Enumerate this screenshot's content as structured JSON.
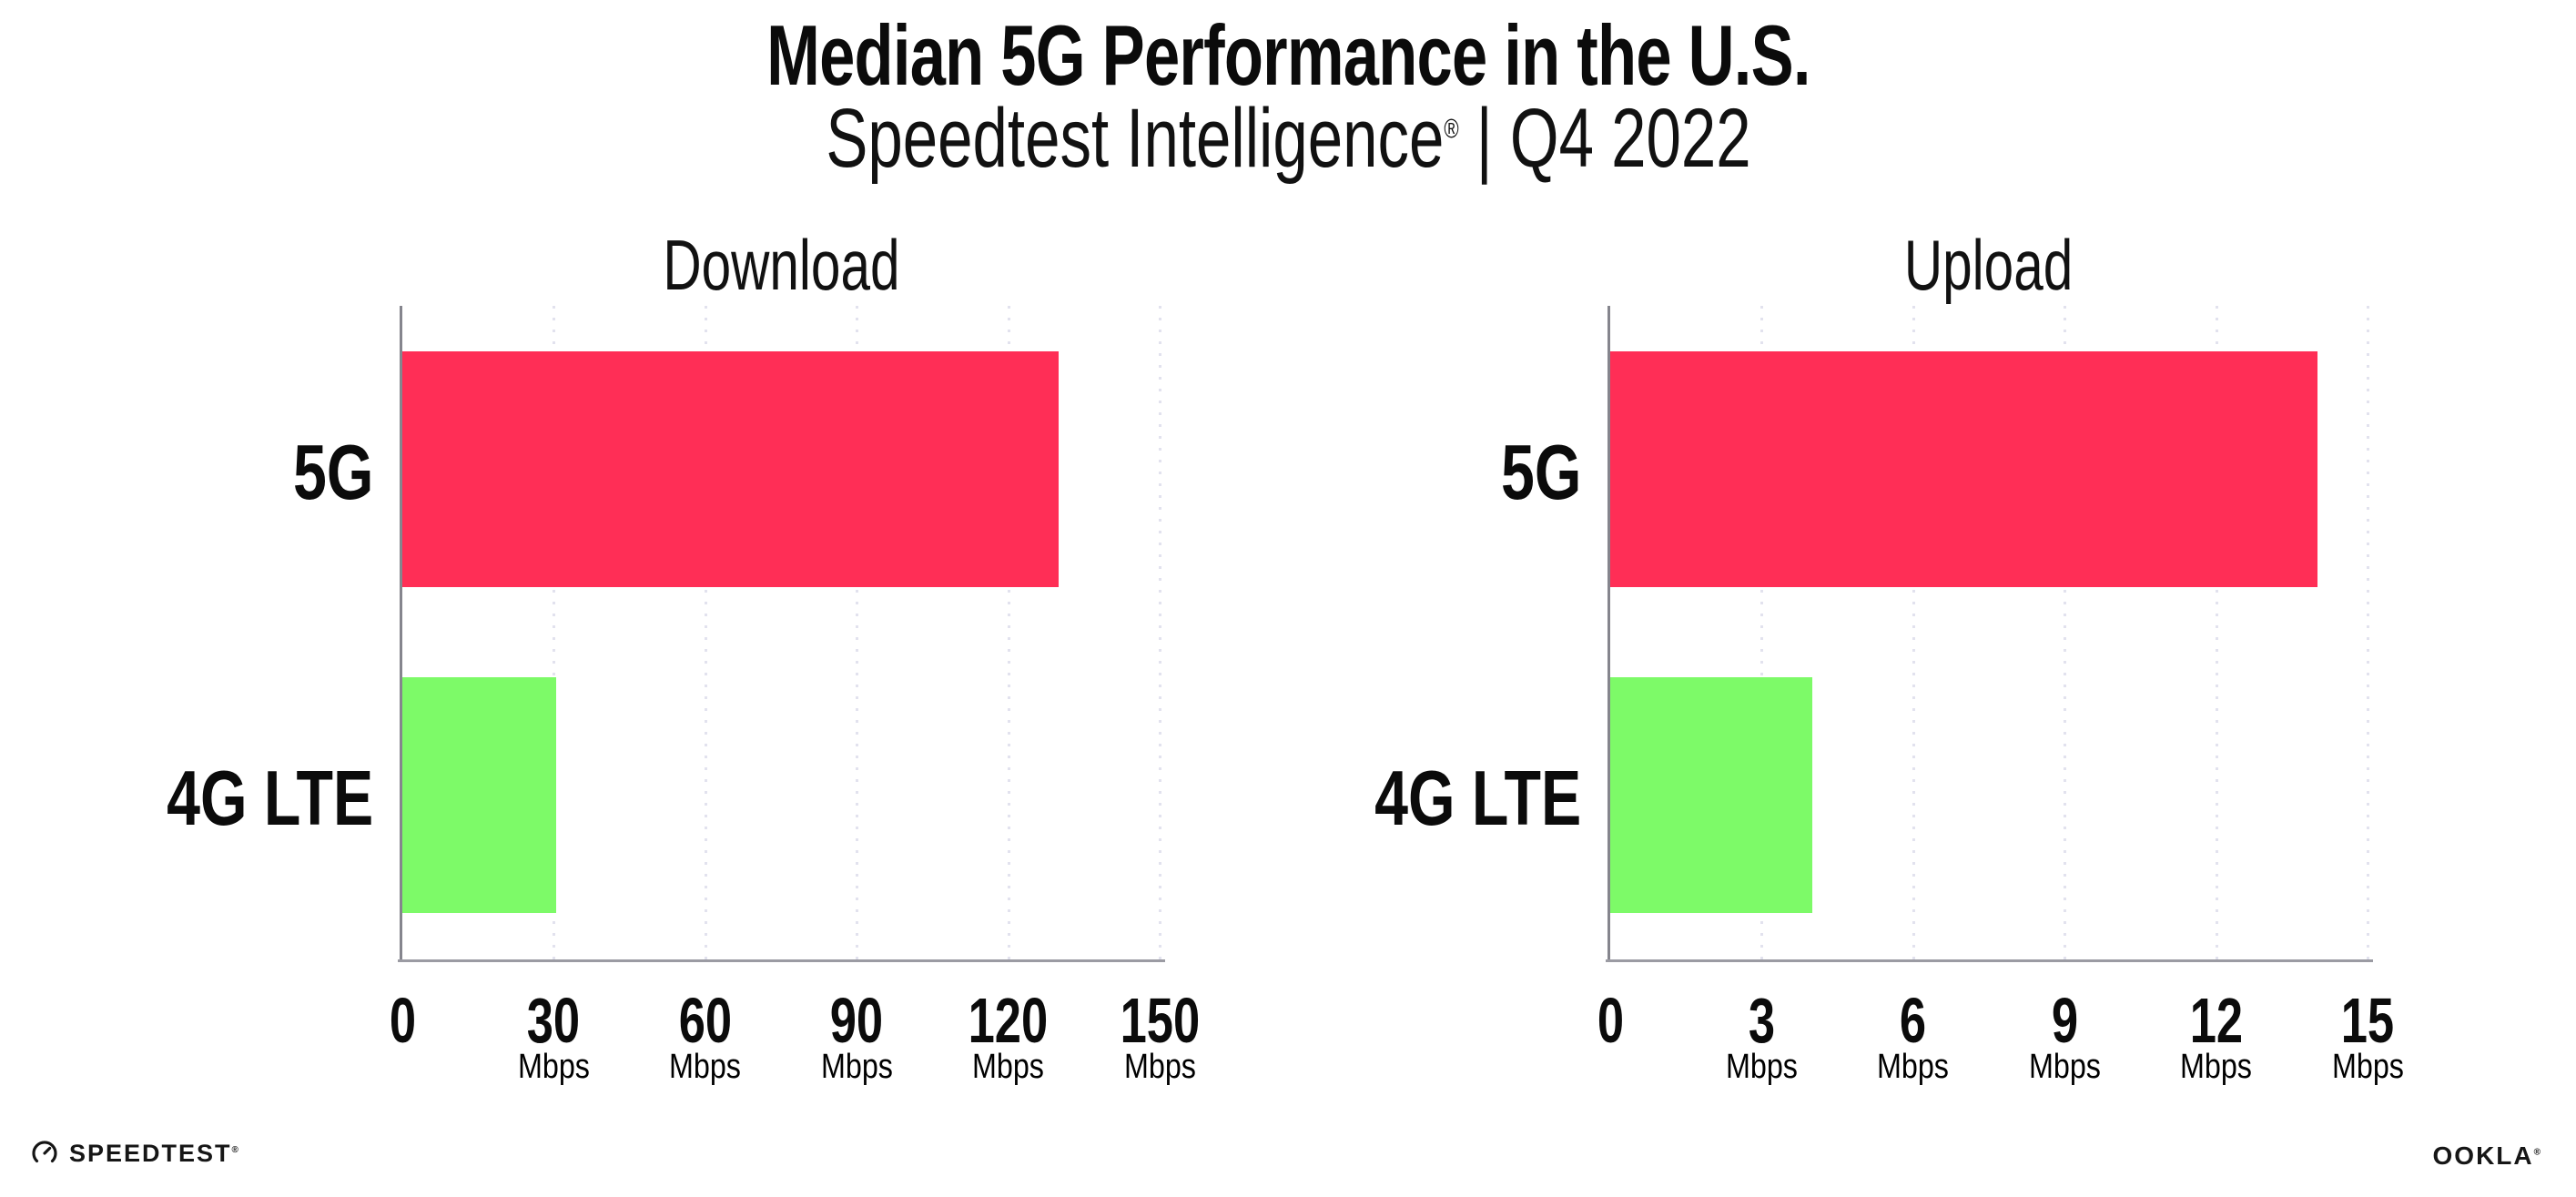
{
  "header": {
    "title": "Median 5G Performance in the U.S.",
    "subtitle": {
      "brand": "Speedtest Intelligence",
      "mark": "®",
      "rest": " | Q4 2022"
    }
  },
  "chart_data": [
    {
      "type": "bar",
      "orientation": "horizontal",
      "title": "Download",
      "categories": [
        "5G",
        "4G LTE"
      ],
      "values": [
        130,
        30.5
      ],
      "unit": "Mbps",
      "xlabel": "Mbps",
      "xlim": [
        0,
        150
      ],
      "xticks": [
        0,
        30,
        60,
        90,
        120,
        150
      ],
      "bar_colors": [
        "#FF2E56",
        "#7DFA68"
      ],
      "grid": "vertical-dotted",
      "legend": "none"
    },
    {
      "type": "bar",
      "orientation": "horizontal",
      "title": "Upload",
      "categories": [
        "5G",
        "4G LTE"
      ],
      "values": [
        14,
        4
      ],
      "unit": "Mbps",
      "xlabel": "Mbps",
      "xlim": [
        0,
        15
      ],
      "xticks": [
        0,
        3,
        6,
        9,
        12,
        15
      ],
      "bar_colors": [
        "#FF2E56",
        "#7DFA68"
      ],
      "grid": "vertical-dotted",
      "legend": "none"
    }
  ],
  "footer": {
    "speedtest_label": "SPEEDTEST",
    "speedtest_mark": "®",
    "ookla_label": "OOKLA",
    "ookla_mark": "®"
  },
  "colors": {
    "bar_5g": "#FF2E56",
    "bar_4g_lte": "#7DFA68",
    "axis_x": "#9B9BA3",
    "axis_y": "#85858D",
    "gridline": "#E2E2EE",
    "text": "#0B0B0B"
  }
}
